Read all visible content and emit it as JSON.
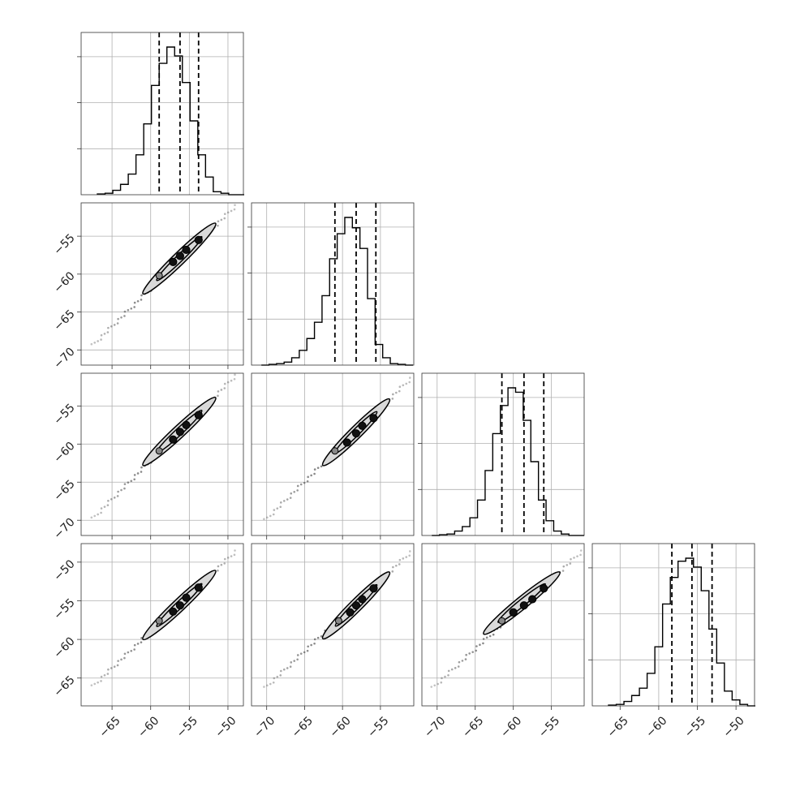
{
  "chart_data": {
    "type": "corner",
    "parameters": 4,
    "grid": true,
    "colors": {
      "line": "#000000",
      "grid": "#b0b0b0",
      "frame": "#333333",
      "density": "#d9d9d9",
      "points": "#555555"
    },
    "axes": [
      {
        "range": [
          -69,
          -48
        ],
        "ticks": [
          -65,
          -60,
          -55,
          -50
        ],
        "labels": [
          "−65",
          "−60",
          "−55",
          "−50"
        ]
      },
      {
        "range": [
          -72,
          -50.6
        ],
        "ticks": [
          -70,
          -65,
          -60,
          -55
        ],
        "labels": [
          "−70",
          "−65",
          "−60",
          "−55"
        ]
      },
      {
        "range": [
          -72,
          -50.7
        ],
        "ticks": [
          -70,
          -65,
          -60,
          -55
        ],
        "labels": [
          "−70",
          "−65",
          "−60",
          "−55"
        ]
      },
      {
        "range": [
          -68.6,
          -47.6
        ],
        "ticks": [
          -65,
          -60,
          -55,
          -50
        ],
        "labels": [
          "−65",
          "−60",
          "−55",
          "−50"
        ]
      }
    ],
    "histograms": [
      {
        "param": 0,
        "bins": [
          -66.9,
          -65.9,
          -64.9,
          -63.9,
          -62.9,
          -61.9,
          -60.9,
          -59.9,
          -58.9,
          -57.9,
          -56.9,
          -55.9,
          -54.9,
          -53.9,
          -52.9,
          -51.9,
          -50.9,
          -49.9,
          -48.9,
          -47.9
        ],
        "counts": [
          0.005,
          0.01,
          0.03,
          0.07,
          0.14,
          0.27,
          0.48,
          0.74,
          0.89,
          1.0,
          0.94,
          0.76,
          0.5,
          0.27,
          0.12,
          0.02,
          0.01,
          0.0,
          0.0
        ],
        "quantiles": [
          -58.9,
          -56.2,
          -53.8
        ]
      },
      {
        "param": 1,
        "bins": [
          -70.7,
          -69.7,
          -68.7,
          -67.7,
          -66.7,
          -65.7,
          -64.7,
          -63.7,
          -62.7,
          -61.7,
          -60.7,
          -59.7,
          -58.7,
          -57.7,
          -56.7,
          -55.7,
          -54.7,
          -53.7,
          -52.7,
          -51.7,
          -50.7
        ],
        "counts": [
          0.0,
          0.005,
          0.01,
          0.02,
          0.05,
          0.1,
          0.18,
          0.29,
          0.47,
          0.72,
          0.89,
          1.0,
          0.93,
          0.79,
          0.45,
          0.14,
          0.05,
          0.01,
          0.005,
          0.0
        ],
        "quantiles": [
          -61.0,
          -58.2,
          -55.6
        ]
      },
      {
        "param": 2,
        "bins": [
          -70.7,
          -69.7,
          -68.7,
          -67.7,
          -66.7,
          -65.7,
          -64.7,
          -63.7,
          -62.7,
          -61.7,
          -60.7,
          -59.7,
          -58.7,
          -57.7,
          -56.7,
          -55.7,
          -54.7,
          -53.7,
          -52.7,
          -51.7,
          -50.7
        ],
        "counts": [
          0.0,
          0.005,
          0.01,
          0.03,
          0.06,
          0.12,
          0.24,
          0.44,
          0.69,
          0.88,
          1.0,
          0.97,
          0.78,
          0.5,
          0.24,
          0.1,
          0.03,
          0.01,
          0.0,
          0.0
        ],
        "quantiles": [
          -61.5,
          -58.6,
          -56.0
        ]
      },
      {
        "param": 3,
        "bins": [
          -66.5,
          -65.5,
          -64.5,
          -63.5,
          -62.5,
          -61.5,
          -60.5,
          -59.5,
          -58.5,
          -57.5,
          -56.5,
          -55.5,
          -54.5,
          -53.5,
          -52.5,
          -51.5,
          -50.5,
          -49.5,
          -48.5,
          -47.5
        ],
        "counts": [
          0.005,
          0.01,
          0.03,
          0.07,
          0.12,
          0.22,
          0.4,
          0.69,
          0.87,
          0.98,
          1.0,
          0.94,
          0.78,
          0.52,
          0.29,
          0.1,
          0.04,
          0.01,
          0.0
        ],
        "quantiles": [
          -58.3,
          -55.7,
          -53.1
        ]
      }
    ],
    "scatter": [
      {
        "xparam": 0,
        "yparam": 1,
        "points": [
          [
            -67.5,
            -69.4
          ],
          [
            -61.0,
            -62.6
          ],
          [
            -58.9,
            -60.2
          ],
          [
            -57.1,
            -58.4
          ],
          [
            -56.2,
            -57.6
          ],
          [
            -55.4,
            -56.8
          ],
          [
            -53.8,
            -55.5
          ],
          [
            -51.6,
            -53.3
          ],
          [
            -49.0,
            -51.0
          ]
        ]
      },
      {
        "xparam": 0,
        "yparam": 2,
        "points": [
          [
            -67.5,
            -69.8
          ],
          [
            -61.0,
            -62.8
          ],
          [
            -58.9,
            -60.9
          ],
          [
            -57.1,
            -59.4
          ],
          [
            -56.2,
            -58.4
          ],
          [
            -55.4,
            -57.5
          ],
          [
            -53.8,
            -56.2
          ],
          [
            -51.6,
            -53.9
          ],
          [
            -49.0,
            -51.0
          ]
        ]
      },
      {
        "xparam": 0,
        "yparam": 3,
        "points": [
          [
            -67.5,
            -66.1
          ],
          [
            -61.0,
            -60.0
          ],
          [
            -58.9,
            -57.6
          ],
          [
            -57.1,
            -56.4
          ],
          [
            -56.2,
            -55.6
          ],
          [
            -55.4,
            -54.6
          ],
          [
            -53.8,
            -53.3
          ],
          [
            -51.6,
            -51.1
          ],
          [
            -49.0,
            -48.6
          ]
        ]
      },
      {
        "xparam": 1,
        "yparam": 2,
        "points": [
          [
            -70.2,
            -70.0
          ],
          [
            -62.6,
            -62.8
          ],
          [
            -61.0,
            -60.9
          ],
          [
            -59.4,
            -59.8
          ],
          [
            -58.2,
            -58.6
          ],
          [
            -57.4,
            -57.6
          ],
          [
            -55.9,
            -56.6
          ],
          [
            -53.8,
            -54.1
          ],
          [
            -51.0,
            -51.4
          ]
        ]
      },
      {
        "xparam": 1,
        "yparam": 3,
        "points": [
          [
            -70.2,
            -66.3
          ],
          [
            -62.6,
            -59.9
          ],
          [
            -60.5,
            -57.6
          ],
          [
            -59.0,
            -56.5
          ],
          [
            -58.2,
            -55.6
          ],
          [
            -57.4,
            -54.8
          ],
          [
            -55.9,
            -53.4
          ],
          [
            -53.8,
            -51.3
          ],
          [
            -51.0,
            -48.7
          ]
        ]
      },
      {
        "xparam": 2,
        "yparam": 3,
        "points": [
          [
            -70.6,
            -66.3
          ],
          [
            -63.9,
            -59.3
          ],
          [
            -61.5,
            -57.6
          ],
          [
            -60.0,
            -56.5
          ],
          [
            -58.6,
            -55.6
          ],
          [
            -57.5,
            -54.8
          ],
          [
            -56.0,
            -53.4
          ],
          [
            -53.9,
            -51.3
          ],
          [
            -51.0,
            -48.6
          ]
        ]
      }
    ]
  }
}
